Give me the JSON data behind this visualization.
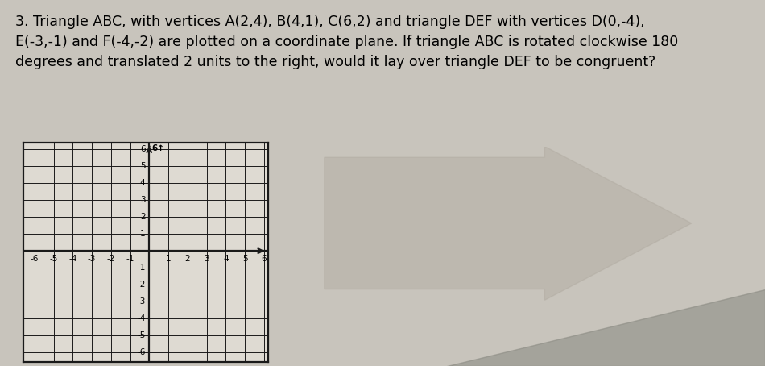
{
  "title_line1": "3. Triangle ABC, with vertices A(2,4), B(4,1), C(6,2) and triangle DEF with vertices D(0,-4),",
  "title_line2": "E(-3,-1) and F(-4,-2) are plotted on a coordinate plane. If triangle ABC is rotated clockwise 180",
  "title_line3": "degrees and translated 2 units to the right, would it lay over triangle DEF to be congruent?",
  "title_fontsize": 12.5,
  "grid_color": "#1a1a1a",
  "bg_color": "#c8c4bc",
  "plot_bg_color": "#dedad2",
  "xlim": [
    -6.6,
    6.2
  ],
  "ylim": [
    -6.6,
    6.4
  ],
  "xticks": [
    -6,
    -5,
    -4,
    -3,
    -2,
    -1,
    1,
    2,
    3,
    4,
    5,
    6
  ],
  "yticks": [
    -6,
    -5,
    -4,
    -3,
    -2,
    -1,
    1,
    2,
    3,
    4,
    5,
    6
  ],
  "grid_lw": 0.7,
  "axis_lw": 1.6,
  "figure_size": [
    9.5,
    4.54
  ],
  "dpi": 100,
  "tick_fontsize": 7.5,
  "shadow_color": "#888880"
}
